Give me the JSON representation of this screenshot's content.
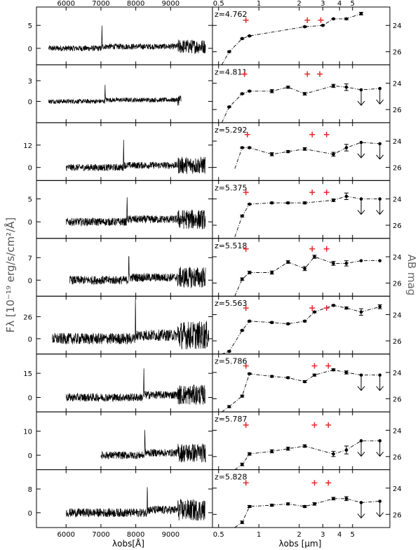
{
  "figure": {
    "left_ylabel": "Fλ [10⁻¹⁹ erg/s/cm²/Å]",
    "left_xlabel": "λobs[Å]",
    "right_ylabel": "AB mag",
    "right_xlabel": "λobs [μm]",
    "left_xticks": [
      6000,
      7000,
      8000,
      9000
    ],
    "right_xticks": [
      0.5,
      1,
      2,
      3,
      4,
      5
    ],
    "left_xlim": [
      5150,
      10200
    ],
    "right_xlim": [
      0.45,
      9.5
    ],
    "right_ylim": [
      22.6,
      27.0
    ],
    "right_yticks": [
      24,
      26
    ],
    "colors": {
      "axes": "#000000",
      "spectrum": "#000000",
      "plus": "#e52a2a",
      "label_gray": "#666666"
    }
  },
  "chart_data": {
    "type": "line",
    "panels": [
      {
        "z": "z=4.762",
        "yticks": [
          0,
          5
        ],
        "ylim": [
          -3.6,
          9
        ],
        "spec": [
          5500,
          10000
        ],
        "line": 7030,
        "line_h": 4.7,
        "sed": [
          [
            0.6,
            26.0
          ],
          [
            0.75,
            25.0
          ],
          [
            0.85,
            24.8
          ],
          [
            2.2,
            24.1
          ],
          [
            3.0,
            24.0
          ],
          [
            3.6,
            23.5
          ],
          [
            4.5,
            23.5
          ],
          [
            5.8,
            23.1
          ]
        ],
        "sed_err": [
          0.05,
          0.05,
          0.04,
          0.05,
          0.04,
          0.04,
          0.06,
          0.1
        ],
        "plus": [
          [
            0.8,
            23.6
          ],
          [
            2.3,
            23.6
          ],
          [
            2.9,
            23.6
          ]
        ],
        "arrows": []
      },
      {
        "z": "z=4.811",
        "yticks": [
          0,
          3
        ],
        "ylim": [
          -3.1,
          5.3
        ],
        "spec": [
          5500,
          9300
        ],
        "line": 7120,
        "line_h": 2.5,
        "sed": [
          [
            0.6,
            25.8
          ],
          [
            0.75,
            24.8
          ],
          [
            0.85,
            24.6
          ],
          [
            1.25,
            24.6
          ],
          [
            1.65,
            24.3
          ],
          [
            2.2,
            24.8
          ],
          [
            3.6,
            24.2
          ],
          [
            4.5,
            24.3
          ],
          [
            5.8,
            24.5
          ],
          [
            8.0,
            24.4
          ]
        ],
        "sed_err": [
          0.05,
          0.05,
          0.05,
          0.12,
          0.08,
          0.1,
          0.12,
          0.25,
          0,
          0
        ],
        "plus": [
          [
            0.78,
            23.3
          ],
          [
            2.3,
            23.3
          ],
          [
            2.85,
            23.3
          ]
        ],
        "arrows": [
          5.8,
          8.0
        ]
      },
      {
        "z": "z=5.292",
        "yticks": [
          0,
          12
        ],
        "ylim": [
          -7,
          24
        ],
        "spec": [
          6000,
          10000
        ],
        "line": 7650,
        "line_h": 14,
        "sed": [
          [
            0.75,
            24.5
          ],
          [
            0.85,
            24.5
          ],
          [
            1.25,
            25.0
          ],
          [
            1.65,
            24.8
          ],
          [
            2.2,
            24.6
          ],
          [
            3.6,
            25.0
          ],
          [
            4.5,
            24.5
          ],
          [
            5.8,
            24.1
          ],
          [
            8.0,
            24.2
          ]
        ],
        "sed_err": [
          0.05,
          0.05,
          0.12,
          0.08,
          0.1,
          0.15,
          0.25,
          0,
          0
        ],
        "plus": [
          [
            0.82,
            23.5
          ],
          [
            2.5,
            23.5
          ],
          [
            3.2,
            23.5
          ]
        ],
        "arrows": [
          5.8,
          8.0
        ]
      },
      {
        "z": "z=5.375",
        "yticks": [
          0,
          5
        ],
        "ylim": [
          -3.6,
          9
        ],
        "spec": [
          6000,
          10000
        ],
        "line": 7750,
        "line_h": 6.5,
        "sed": [
          [
            0.75,
            25.3
          ],
          [
            0.85,
            24.4
          ],
          [
            1.25,
            24.3
          ],
          [
            1.65,
            24.3
          ],
          [
            2.2,
            24.3
          ],
          [
            3.6,
            24.1
          ],
          [
            4.5,
            23.8
          ],
          [
            5.8,
            24.0
          ],
          [
            8.0,
            24.0
          ]
        ],
        "sed_err": [
          0.08,
          0.05,
          0.06,
          0.06,
          0.08,
          0.1,
          0.25,
          0,
          0
        ],
        "plus": [
          [
            0.8,
            23.5
          ],
          [
            2.5,
            23.5
          ],
          [
            3.2,
            23.5
          ]
        ],
        "arrows": [
          5.8,
          8.0
        ]
      },
      {
        "z": "z=5.518",
        "yticks": [
          0,
          7
        ],
        "ylim": [
          -5,
          13
        ],
        "spec": [
          6100,
          10000
        ],
        "line": 7800,
        "line_h": 10,
        "sed": [
          [
            0.75,
            25.7
          ],
          [
            0.85,
            25.2
          ],
          [
            1.25,
            25.2
          ],
          [
            1.65,
            24.4
          ],
          [
            2.2,
            24.9
          ],
          [
            2.6,
            24.0
          ],
          [
            3.6,
            24.5
          ],
          [
            4.5,
            24.5
          ],
          [
            5.8,
            24.3
          ],
          [
            8.0,
            24.3
          ]
        ],
        "sed_err": [
          0.1,
          0.1,
          0.12,
          0.1,
          0.15,
          0.12,
          0.15,
          0.2,
          0,
          0
        ],
        "plus": [
          [
            0.8,
            23.4
          ],
          [
            2.5,
            23.4
          ],
          [
            3.2,
            23.4
          ]
        ],
        "arrows": []
      },
      {
        "z": "z=5.563",
        "yticks": [
          0,
          26
        ],
        "ylim": [
          -18,
          50
        ],
        "spec": [
          5600,
          10100
        ],
        "line": 7990,
        "line_h": 50,
        "sed": [
          [
            0.6,
            26.8
          ],
          [
            0.75,
            25.2
          ],
          [
            0.85,
            24.5
          ],
          [
            1.25,
            24.6
          ],
          [
            1.65,
            24.7
          ],
          [
            2.2,
            24.5
          ],
          [
            2.6,
            23.8
          ],
          [
            3.6,
            23.3
          ],
          [
            4.5,
            23.5
          ],
          [
            5.8,
            23.8
          ],
          [
            8.0,
            23.4
          ]
        ],
        "sed_err": [
          0.05,
          0.05,
          0.05,
          0.06,
          0.06,
          0.06,
          0.06,
          0.05,
          0.08,
          0.25,
          0.15
        ],
        "plus": [
          [
            0.8,
            23.5
          ],
          [
            2.5,
            23.5
          ],
          [
            3.2,
            23.5
          ]
        ],
        "arrows": []
      },
      {
        "z": "z=5.786",
        "yticks": [
          0,
          15
        ],
        "ylim": [
          -9,
          27
        ],
        "spec": [
          6000,
          10000
        ],
        "line": 8230,
        "line_h": 19,
        "sed": [
          [
            0.6,
            26.6
          ],
          [
            0.75,
            25.8
          ],
          [
            0.85,
            24.1
          ],
          [
            1.25,
            24.3
          ],
          [
            1.65,
            24.4
          ],
          [
            2.2,
            24.7
          ],
          [
            2.6,
            24.2
          ],
          [
            3.6,
            23.8
          ],
          [
            4.5,
            24.0
          ],
          [
            5.8,
            24.2
          ],
          [
            8.0,
            24.2
          ]
        ],
        "sed_err": [
          0.08,
          0.08,
          0.05,
          0.06,
          0.06,
          0.08,
          0.08,
          0.08,
          0.12,
          0,
          0
        ],
        "plus": [
          [
            0.8,
            23.5
          ],
          [
            2.6,
            23.5
          ],
          [
            3.3,
            23.5
          ]
        ],
        "arrows": [
          5.8,
          8.0
        ]
      },
      {
        "z": "z=5.787",
        "yticks": [
          0,
          10
        ],
        "ylim": [
          -6,
          18
        ],
        "spec": [
          7000,
          10000
        ],
        "line": 8260,
        "line_h": 12,
        "sed": [
          [
            0.75,
            26.6
          ],
          [
            0.85,
            25.8
          ],
          [
            1.25,
            25.6
          ],
          [
            1.65,
            25.4
          ],
          [
            2.2,
            25.2
          ],
          [
            3.6,
            25.8
          ],
          [
            4.5,
            25.5
          ],
          [
            5.8,
            24.8
          ],
          [
            8.0,
            24.8
          ]
        ],
        "sed_err": [
          0.1,
          0.1,
          0.12,
          0.12,
          0.1,
          0.2,
          0.3,
          0,
          0
        ],
        "plus": [
          [
            0.8,
            23.6
          ],
          [
            2.6,
            23.6
          ],
          [
            3.3,
            23.6
          ]
        ],
        "arrows": [
          5.8,
          8.0
        ]
      },
      {
        "z": "z=5.828",
        "yticks": [
          0,
          8
        ],
        "ylim": [
          -5,
          14.5
        ],
        "spec": [
          6000,
          10000
        ],
        "line": 8330,
        "line_h": 11,
        "sed": [
          [
            0.75,
            26.6
          ],
          [
            0.85,
            25.4
          ],
          [
            1.25,
            25.3
          ],
          [
            1.65,
            25.2
          ],
          [
            2.2,
            25.4
          ],
          [
            2.6,
            25.2
          ],
          [
            3.6,
            24.8
          ],
          [
            4.5,
            24.8
          ],
          [
            5.8,
            25.1
          ],
          [
            8.0,
            25.0
          ]
        ],
        "sed_err": [
          0.1,
          0.08,
          0.08,
          0.08,
          0.08,
          0.1,
          0.1,
          0.15,
          0,
          0
        ],
        "plus": [
          [
            0.8,
            23.6
          ],
          [
            2.6,
            23.6
          ],
          [
            3.3,
            23.6
          ]
        ],
        "arrows": [
          5.8,
          8.0
        ]
      }
    ]
  }
}
